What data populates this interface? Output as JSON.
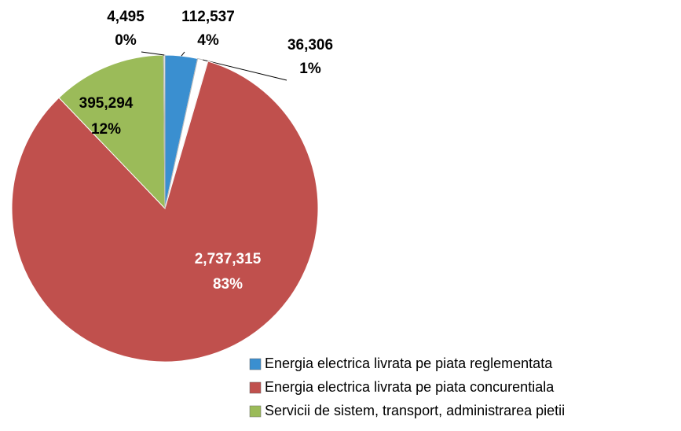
{
  "chart_data": {
    "type": "pie",
    "categories": [
      "Energia electrica livrata pe piata reglementata",
      null,
      "Energia electrica livrata pe piata concurentiala",
      "Servicii de sistem, transport, administrarea pietii",
      null
    ],
    "values": [
      112537,
      36306,
      2737315,
      395294,
      4495
    ],
    "value_labels": [
      "112,537",
      "36,306",
      "2,737,315",
      "395,294",
      "4,495"
    ],
    "percent_labels": [
      "4%",
      "1%",
      "83%",
      "12%",
      "0%"
    ],
    "colors": [
      "#3a8fd0",
      "#ffffff",
      "#c0504d",
      "#9bbb59",
      "#ffffff"
    ],
    "legend": "bottom-right"
  }
}
